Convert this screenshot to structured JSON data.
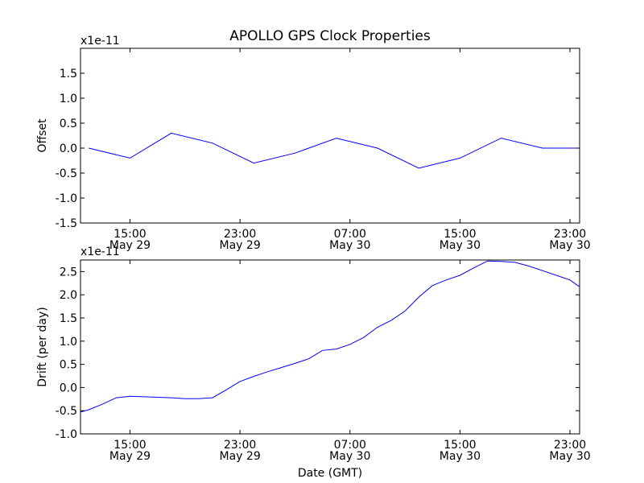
{
  "title": "APOLLO GPS Clock Properties",
  "line_color": "#0000ff",
  "chart_data": [
    {
      "type": "line",
      "ylabel": "Offset",
      "xlabel": "",
      "y_multiplier": "x1e-11",
      "x_ticks": [
        {
          "time": "15:00",
          "date": "May 29"
        },
        {
          "time": "23:00",
          "date": "May 29"
        },
        {
          "time": "07:00",
          "date": "May 30"
        },
        {
          "time": "15:00",
          "date": "May 30"
        },
        {
          "time": "23:00",
          "date": "May 30"
        }
      ],
      "y_ticks": [
        "-1.5",
        "-1.0",
        "-0.5",
        "0.0",
        "0.5",
        "1.0",
        "1.5"
      ],
      "ylim": [
        -1.5,
        2.0
      ],
      "series": [
        {
          "x": [
            "May 29 12:00",
            "May 29 15:00",
            "May 29 18:00",
            "May 29 21:00",
            "May 30 00:00",
            "May 30 03:00",
            "May 30 06:00",
            "May 30 09:00",
            "May 30 12:00",
            "May 30 15:00",
            "May 30 18:00",
            "May 30 21:00",
            "May 31 00:00"
          ],
          "y": [
            0.0,
            -0.2,
            0.3,
            0.1,
            -0.3,
            -0.1,
            0.2,
            0.0,
            -0.4,
            -0.2,
            0.2,
            0.0,
            0.0
          ]
        }
      ]
    },
    {
      "type": "line",
      "ylabel": "Drift (per day)",
      "xlabel": "Date (GMT)",
      "y_multiplier": "x1e-11",
      "x_ticks": [
        {
          "time": "15:00",
          "date": "May 29"
        },
        {
          "time": "23:00",
          "date": "May 29"
        },
        {
          "time": "07:00",
          "date": "May 30"
        },
        {
          "time": "15:00",
          "date": "May 30"
        },
        {
          "time": "23:00",
          "date": "May 30"
        }
      ],
      "y_ticks": [
        "-1.0",
        "-0.5",
        "0.0",
        "0.5",
        "1.0",
        "1.5",
        "2.0",
        "2.5"
      ],
      "ylim": [
        -1.0,
        2.75
      ],
      "series": [
        {
          "x": [
            "May 29 11:00",
            "May 29 12:00",
            "May 29 13:00",
            "May 29 14:00",
            "May 29 15:00",
            "May 29 16:00",
            "May 29 17:00",
            "May 29 18:00",
            "May 29 19:00",
            "May 29 20:00",
            "May 29 21:00",
            "May 29 22:00",
            "May 29 23:00",
            "May 30 00:00",
            "May 30 01:00",
            "May 30 02:00",
            "May 30 03:00",
            "May 30 04:00",
            "May 30 05:00",
            "May 30 06:00",
            "May 30 07:00",
            "May 30 08:00",
            "May 30 09:00",
            "May 30 10:00",
            "May 30 11:00",
            "May 30 12:00",
            "May 30 13:00",
            "May 30 14:00",
            "May 30 15:00",
            "May 30 16:00",
            "May 30 17:00",
            "May 30 18:00",
            "May 30 19:00",
            "May 30 20:00",
            "May 30 21:00",
            "May 30 22:00",
            "May 30 23:00",
            "May 30 23:40"
          ],
          "y": [
            -0.53,
            -0.48,
            -0.36,
            -0.22,
            -0.19,
            -0.2,
            -0.21,
            -0.22,
            -0.24,
            -0.24,
            -0.22,
            -0.05,
            0.13,
            0.24,
            0.34,
            0.43,
            0.52,
            0.62,
            0.8,
            0.83,
            0.93,
            1.08,
            1.3,
            1.45,
            1.65,
            1.95,
            2.2,
            2.32,
            2.42,
            2.58,
            2.73,
            2.72,
            2.7,
            2.62,
            2.52,
            2.42,
            2.32,
            2.18
          ]
        }
      ]
    }
  ]
}
